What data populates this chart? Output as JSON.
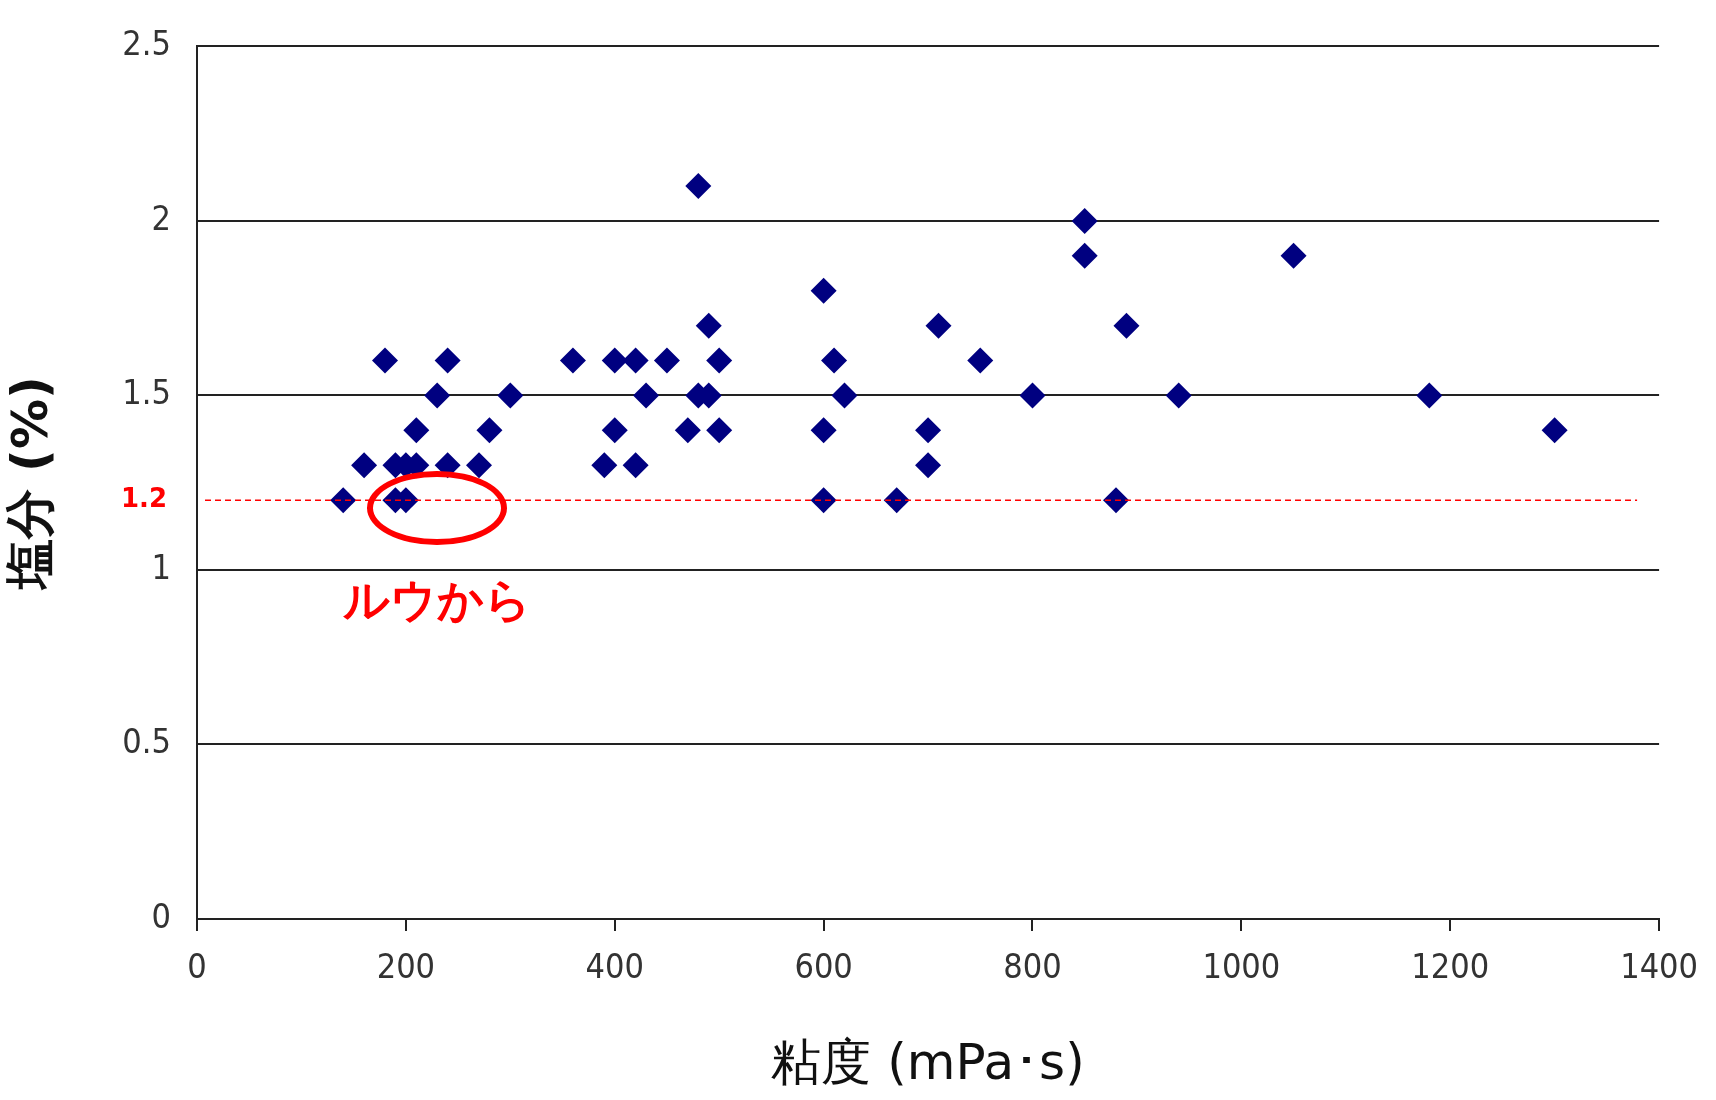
{
  "chart_data": {
    "type": "scatter",
    "xlabel": "粘度 (mPa･s)",
    "ylabel": "塩分 (%)",
    "series": [
      {
        "color": "#000080",
        "x": [
          140,
          160,
          180,
          190,
          200,
          210,
          190,
          200,
          210,
          230,
          240,
          240,
          270,
          280,
          300,
          360,
          390,
          400,
          400,
          420,
          420,
          430,
          450,
          470,
          480,
          480,
          490,
          490,
          500,
          500,
          600,
          600,
          600,
          610,
          620,
          670,
          700,
          700,
          710,
          750,
          800,
          850,
          850,
          880,
          890,
          940,
          1050,
          1180,
          1300
        ],
        "values": [
          1.2,
          1.3,
          1.6,
          1.3,
          1.3,
          1.3,
          1.2,
          1.2,
          1.4,
          1.5,
          1.6,
          1.3,
          1.3,
          1.4,
          1.5,
          1.6,
          1.3,
          1.6,
          1.4,
          1.6,
          1.3,
          1.5,
          1.6,
          1.4,
          2.1,
          1.5,
          1.7,
          1.5,
          1.6,
          1.4,
          1.8,
          1.4,
          1.2,
          1.6,
          1.5,
          1.2,
          1.4,
          1.3,
          1.7,
          1.6,
          1.5,
          2.0,
          1.9,
          1.2,
          1.7,
          1.5,
          1.9,
          1.5,
          1.4
        ]
      }
    ],
    "xlim": [
      0,
      1400
    ],
    "xticks": [
      0,
      200,
      400,
      600,
      800,
      1000,
      1200,
      1400
    ],
    "ylim": [
      0,
      2.5
    ],
    "yticks": [
      0,
      0.5,
      1,
      1.5,
      2,
      2.5
    ],
    "grid": "y",
    "legend": false,
    "marker": "diamond",
    "ref_lines": [
      {
        "axis": "y",
        "value": 1.2,
        "label": "1.2",
        "color": "#ff0000",
        "line_style": "dashed"
      }
    ],
    "annotations": [
      "ルウから"
    ]
  }
}
